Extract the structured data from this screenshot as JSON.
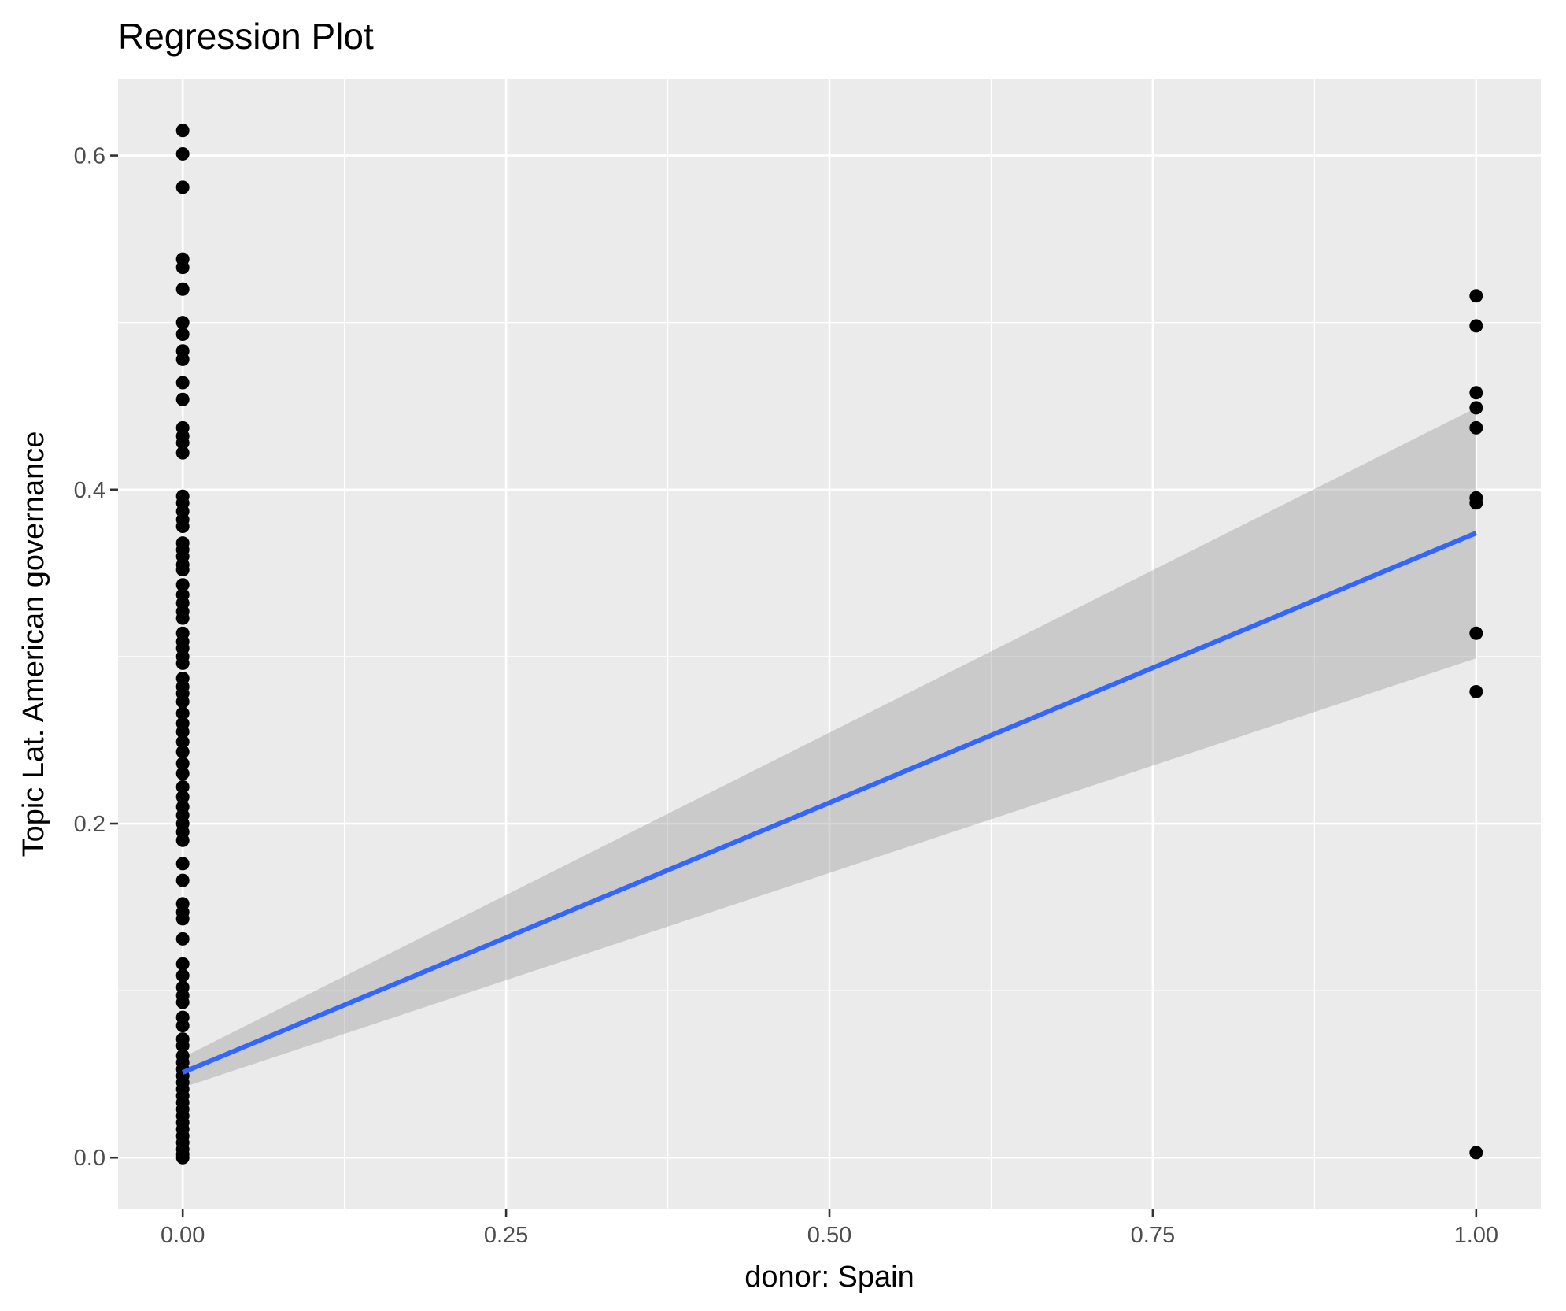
{
  "chart_data": {
    "type": "scatter",
    "title": "Regression Plot",
    "xlabel": "donor: Spain",
    "ylabel": "Topic Lat. American governance",
    "xlim": [
      -0.05,
      1.05
    ],
    "ylim": [
      -0.031,
      0.646
    ],
    "x_ticks": [
      "0.00",
      "0.25",
      "0.50",
      "0.75",
      "1.00"
    ],
    "y_ticks": [
      "0.0",
      "0.2",
      "0.4",
      "0.6"
    ],
    "grid": true,
    "legend": "none",
    "series": [
      {
        "x": 0,
        "values": [
          0.615,
          0.601,
          0.581,
          0.538,
          0.533,
          0.52,
          0.5,
          0.493,
          0.483,
          0.478,
          0.464,
          0.454,
          0.437,
          0.432,
          0.428,
          0.422,
          0.396,
          0.392,
          0.387,
          0.382,
          0.378,
          0.368,
          0.364,
          0.36,
          0.355,
          0.352,
          0.343,
          0.337,
          0.332,
          0.327,
          0.323,
          0.314,
          0.309,
          0.305,
          0.3,
          0.296,
          0.287,
          0.282,
          0.278,
          0.273,
          0.266,
          0.26,
          0.255,
          0.249,
          0.243,
          0.236,
          0.23,
          0.222,
          0.216,
          0.21,
          0.205,
          0.2,
          0.195,
          0.19,
          0.176,
          0.166,
          0.152,
          0.147,
          0.143,
          0.131,
          0.116,
          0.109,
          0.102,
          0.097,
          0.093,
          0.084,
          0.079,
          0.071,
          0.067,
          0.061,
          0.057,
          0.053,
          0.049,
          0.045,
          0.041,
          0.037,
          0.033,
          0.029,
          0.025,
          0.021,
          0.017,
          0.013,
          0.009,
          0.005,
          0.002,
          0.0
        ]
      },
      {
        "x": 1,
        "values": [
          0.516,
          0.498,
          0.458,
          0.449,
          0.437,
          0.395,
          0.392,
          0.314,
          0.279,
          0.003
        ]
      }
    ],
    "regression": {
      "x": [
        0,
        1
      ],
      "y": [
        0.051,
        0.374
      ],
      "ci_lower": [
        0.042,
        0.299
      ],
      "ci_upper": [
        0.06,
        0.449
      ]
    },
    "colors": {
      "panel": "#ebebeb",
      "grid": "#ffffff",
      "points": "#000000",
      "line": "#3366ff",
      "ribbon": "#999999"
    }
  }
}
